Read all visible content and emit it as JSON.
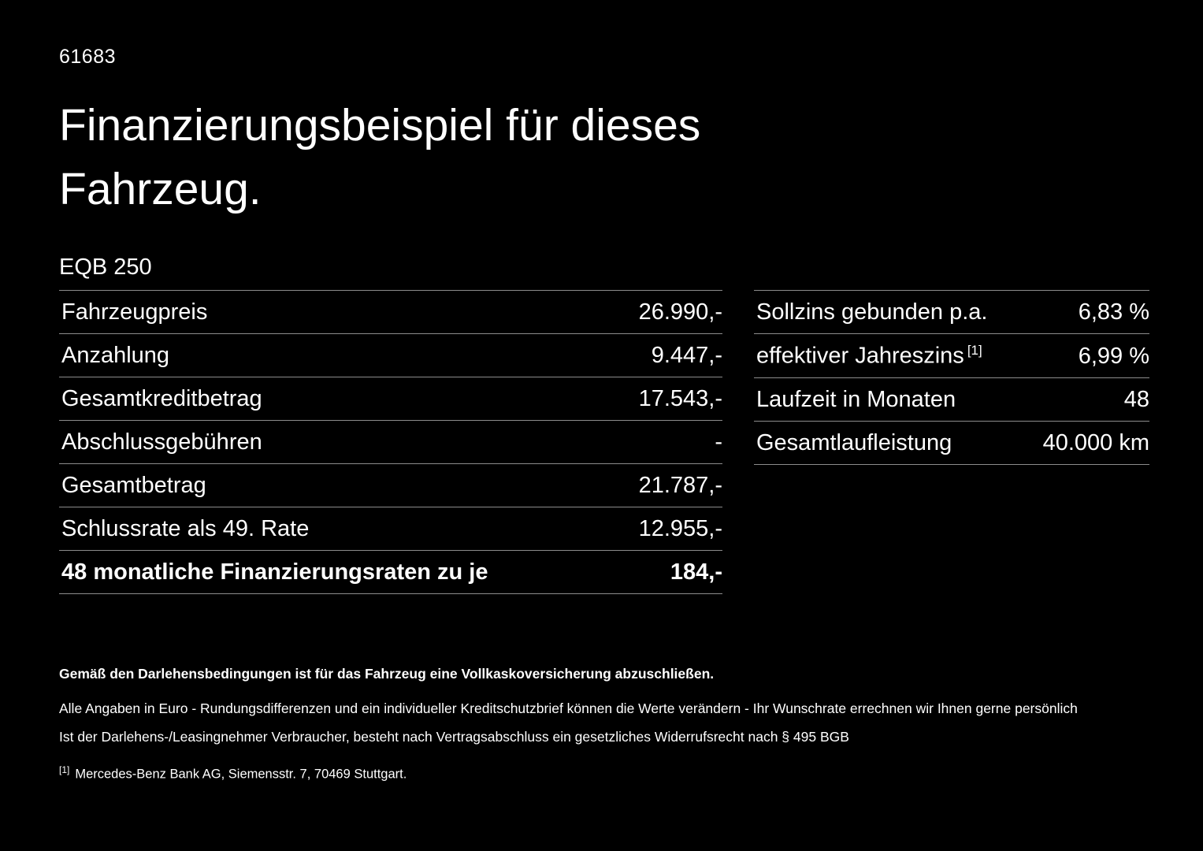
{
  "page": {
    "doc_id": "61683",
    "title": "Finanzierungsbeispiel für dieses Fahrzeug.",
    "model": "EQB 250"
  },
  "left_table": {
    "rows": [
      {
        "label": "Fahrzeugpreis",
        "value": "26.990,-",
        "bold": false
      },
      {
        "label": "Anzahlung",
        "value": "9.447,-",
        "bold": false
      },
      {
        "label": "Gesamtkreditbetrag",
        "value": "17.543,-",
        "bold": false
      },
      {
        "label": "Abschlussgebühren",
        "value": "-",
        "bold": false
      },
      {
        "label": "Gesamtbetrag",
        "value": "21.787,-",
        "bold": false
      },
      {
        "label": "Schlussrate als 49. Rate",
        "value": "12.955,-",
        "bold": false
      },
      {
        "label": "48 monatliche Finanzierungsraten zu je",
        "value": "184,-",
        "bold": true
      }
    ]
  },
  "right_table": {
    "rows": [
      {
        "label": "Sollzins gebunden p.a.",
        "sup": "",
        "value": "6,83 %"
      },
      {
        "label": "effektiver Jahreszins",
        "sup": "[1]",
        "value": "6,99 %"
      },
      {
        "label": "Laufzeit in Monaten",
        "sup": "",
        "value": "48"
      },
      {
        "label": "Gesamtlaufleistung",
        "sup": "",
        "value": "40.000 km"
      }
    ]
  },
  "footer": {
    "note_bold": "Gemäß den Darlehensbedingungen ist für das Fahrzeug eine Vollkaskoversicherung abzuschließen.",
    "note_line1": "Alle Angaben in Euro - Rundungsdifferenzen und ein individueller Kreditschutzbrief können die Werte verändern - Ihr Wunschrate errechnen wir Ihnen gerne persönlich",
    "note_line2": "Ist der Darlehens-/Leasingnehmer Verbraucher, besteht nach Vertragsabschluss ein gesetzliches Widerrufsrecht nach § 495 BGB",
    "footnote_marker": "[1]",
    "footnote_text": "Mercedes-Benz Bank AG, Siemensstr. 7, 70469 Stuttgart."
  },
  "colors": {
    "background": "#000000",
    "text": "#ffffff",
    "divider": "#8c8c8c"
  }
}
